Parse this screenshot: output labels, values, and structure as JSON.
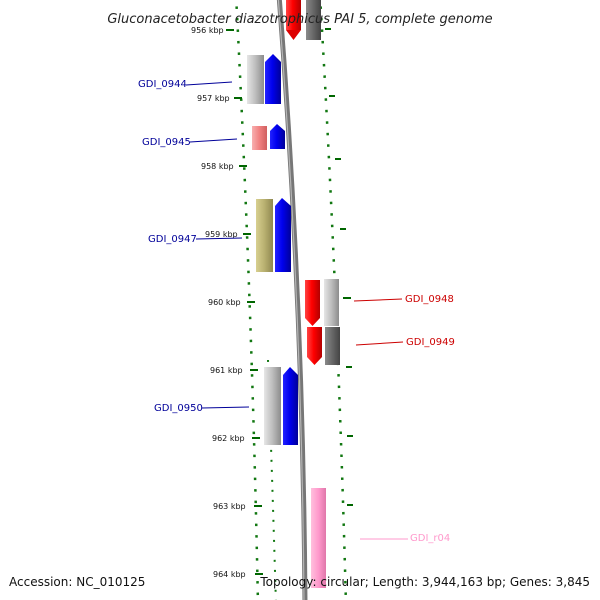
{
  "title": "Gluconacetobacter diazotrophicus PAI 5, complete genome",
  "accession": "Accession: NC_010125",
  "topology": "Topology: circular; Length: 3,944,163 bp; Genes: 3,845",
  "top_partial_label": "956 kbp",
  "ticks": [
    {
      "label": "957 kbp",
      "kb": 957
    },
    {
      "label": "958 kbp",
      "kb": 958
    },
    {
      "label": "959 kbp",
      "kb": 959
    },
    {
      "label": "960 kbp",
      "kb": 960
    },
    {
      "label": "961 kbp",
      "kb": 961
    },
    {
      "label": "962 kbp",
      "kb": 962
    },
    {
      "label": "963 kbp",
      "kb": 963
    },
    {
      "label": "964 kbp",
      "kb": 964
    }
  ],
  "genes": [
    {
      "name": "GDI_0944",
      "strand": "plus",
      "color": "#0000ee",
      "label_color": "#000099"
    },
    {
      "name": "GDI_0945",
      "strand": "plus",
      "color": "#0000ee",
      "label_color": "#000099"
    },
    {
      "name": "GDI_0947",
      "strand": "plus",
      "color": "#0000ee",
      "label_color": "#000099"
    },
    {
      "name": "GDI_0948",
      "strand": "minus",
      "color": "#ff0000",
      "label_color": "#cc0000"
    },
    {
      "name": "GDI_0949",
      "strand": "minus",
      "color": "#ff0000",
      "label_color": "#cc0000"
    },
    {
      "name": "GDI_0950",
      "strand": "plus",
      "color": "#0000ee",
      "label_color": "#000099"
    },
    {
      "name": "GDI_r04",
      "strand": "minus",
      "color": "#ff99cc",
      "label_color": "#ff99cc"
    }
  ],
  "colors": {
    "plus_strand": "#0000ee",
    "minus_strand": "#ff0000",
    "rna": "#ff99cc",
    "tick": "#006600",
    "backbone": "#777777"
  }
}
